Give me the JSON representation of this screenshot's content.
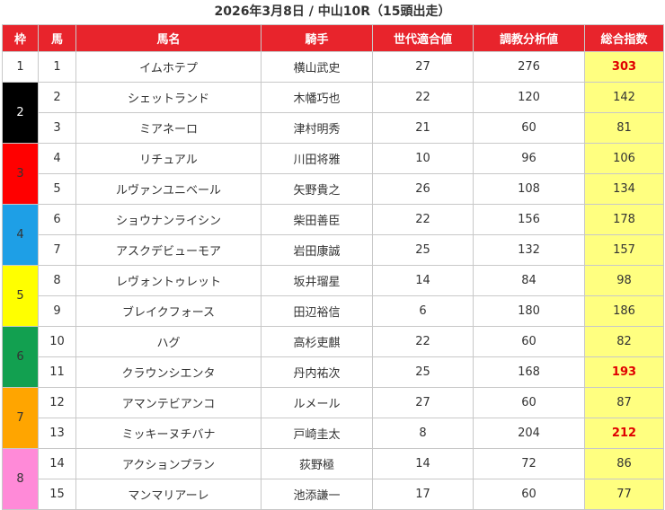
{
  "title": "2026年3月8日 / 中山10R（15頭出走）",
  "headers": [
    "枠",
    "馬",
    "馬名",
    "騎手",
    "世代適合値",
    "調教分析値",
    "総合指数"
  ],
  "colors": {
    "header_bg": "#e8242c",
    "total_bg": "#ffff80",
    "highlight": "#e00000"
  },
  "waku": [
    {
      "label": "1",
      "bg": "#ffffff",
      "fg": "#333333",
      "rows": 1
    },
    {
      "label": "2",
      "bg": "#000000",
      "fg": "#ffffff",
      "rows": 2
    },
    {
      "label": "3",
      "bg": "#ff0000",
      "fg": "#333333",
      "rows": 2
    },
    {
      "label": "4",
      "bg": "#1e9fe6",
      "fg": "#333333",
      "rows": 2
    },
    {
      "label": "5",
      "bg": "#ffff00",
      "fg": "#333333",
      "rows": 2
    },
    {
      "label": "6",
      "bg": "#12a050",
      "fg": "#333333",
      "rows": 2
    },
    {
      "label": "7",
      "bg": "#ffa500",
      "fg": "#333333",
      "rows": 2
    },
    {
      "label": "8",
      "bg": "#ff8ad8",
      "fg": "#333333",
      "rows": 2
    }
  ],
  "horses": [
    {
      "num": "1",
      "name": "イムホテプ",
      "jockey": "横山武史",
      "gen": "27",
      "train": "276",
      "total": "303",
      "highlight": true
    },
    {
      "num": "2",
      "name": "シェットランド",
      "jockey": "木幡巧也",
      "gen": "22",
      "train": "120",
      "total": "142",
      "highlight": false
    },
    {
      "num": "3",
      "name": "ミアネーロ",
      "jockey": "津村明秀",
      "gen": "21",
      "train": "60",
      "total": "81",
      "highlight": false
    },
    {
      "num": "4",
      "name": "リチュアル",
      "jockey": "川田将雅",
      "gen": "10",
      "train": "96",
      "total": "106",
      "highlight": false
    },
    {
      "num": "5",
      "name": "ルヴァンユニベール",
      "jockey": "矢野貴之",
      "gen": "26",
      "train": "108",
      "total": "134",
      "highlight": false
    },
    {
      "num": "6",
      "name": "ショウナンライシン",
      "jockey": "柴田善臣",
      "gen": "22",
      "train": "156",
      "total": "178",
      "highlight": false
    },
    {
      "num": "7",
      "name": "アスクデビューモア",
      "jockey": "岩田康誠",
      "gen": "25",
      "train": "132",
      "total": "157",
      "highlight": false
    },
    {
      "num": "8",
      "name": "レヴォントゥレット",
      "jockey": "坂井瑠星",
      "gen": "14",
      "train": "84",
      "total": "98",
      "highlight": false
    },
    {
      "num": "9",
      "name": "ブレイクフォース",
      "jockey": "田辺裕信",
      "gen": "6",
      "train": "180",
      "total": "186",
      "highlight": false
    },
    {
      "num": "10",
      "name": "ハグ",
      "jockey": "高杉吏麒",
      "gen": "22",
      "train": "60",
      "total": "82",
      "highlight": false
    },
    {
      "num": "11",
      "name": "クラウンシエンタ",
      "jockey": "丹内祐次",
      "gen": "25",
      "train": "168",
      "total": "193",
      "highlight": true
    },
    {
      "num": "12",
      "name": "アマンテビアンコ",
      "jockey": "ルメール",
      "gen": "27",
      "train": "60",
      "total": "87",
      "highlight": false
    },
    {
      "num": "13",
      "name": "ミッキーヌチバナ",
      "jockey": "戸崎圭太",
      "gen": "8",
      "train": "204",
      "total": "212",
      "highlight": true
    },
    {
      "num": "14",
      "name": "アクションプラン",
      "jockey": "荻野極",
      "gen": "14",
      "train": "72",
      "total": "86",
      "highlight": false
    },
    {
      "num": "15",
      "name": "マンマリアーレ",
      "jockey": "池添謙一",
      "gen": "17",
      "train": "60",
      "total": "77",
      "highlight": false
    }
  ]
}
